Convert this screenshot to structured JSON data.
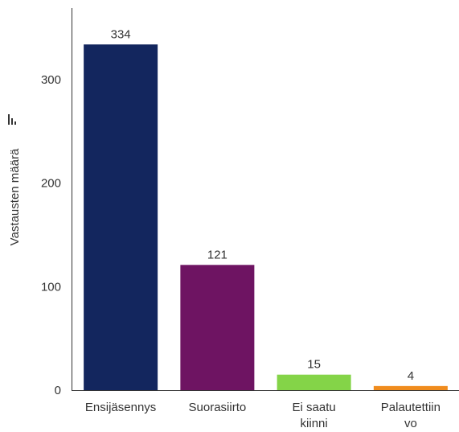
{
  "chart_data": {
    "type": "bar",
    "title": "",
    "xlabel": "",
    "ylabel": "Vastausten määrä",
    "ylim": [
      0,
      370
    ],
    "yticks": [
      0,
      100,
      200,
      300
    ],
    "grid": false,
    "legend": "none",
    "categories": [
      {
        "lines": [
          "Ensijäsennys"
        ],
        "value": 334,
        "color": "#13265e"
      },
      {
        "lines": [
          "Suorasiirto"
        ],
        "value": 121,
        "color": "#6e1462"
      },
      {
        "lines": [
          "Ei saatu",
          "kiinni"
        ],
        "value": 15,
        "color": "#84d448"
      },
      {
        "lines": [
          "Palautettiin",
          "vo"
        ],
        "value": 4,
        "color": "#f08c1e"
      }
    ],
    "icon": "bar-chart-icon",
    "axis_color": "#333333"
  }
}
